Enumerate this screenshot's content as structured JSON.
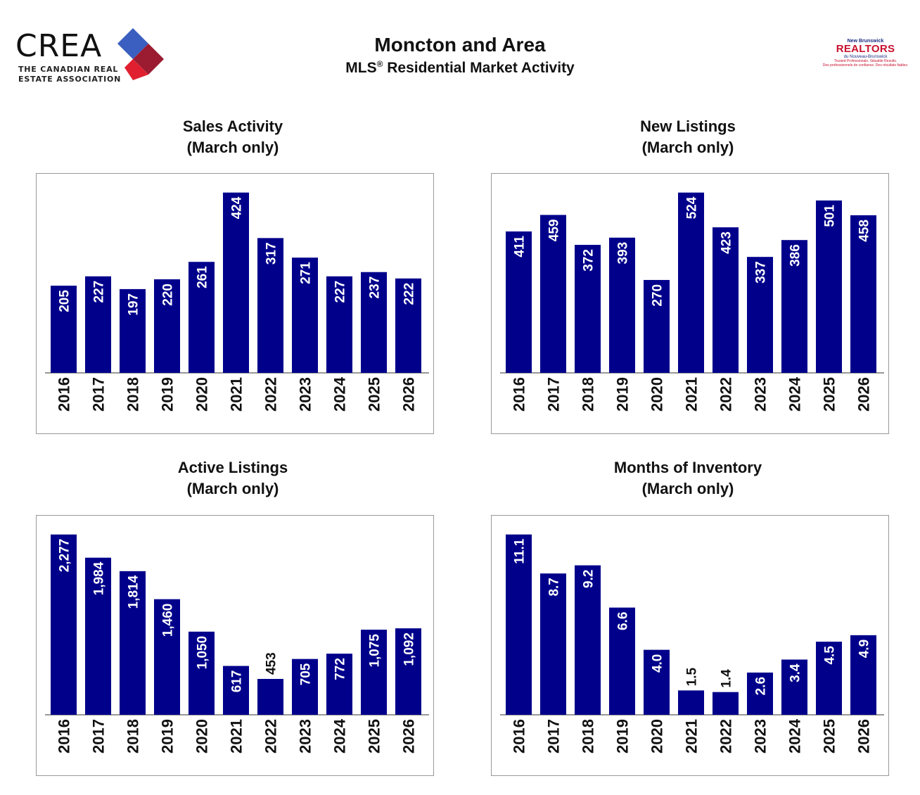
{
  "header": {
    "title": "Moncton and Area",
    "subtitle_pre": "MLS",
    "subtitle_mark": "®",
    "subtitle_post": " Residential Market Activity"
  },
  "logos": {
    "crea_word": "CREA",
    "crea_line1": "THE CANADIAN REAL",
    "crea_line2": "ESTATE ASSOCIATION",
    "nb_top": "New Brunswick",
    "nb_main": "REALTORS",
    "nb_sub": "du Nouveau-Brunswick",
    "nb_tag1": "Trusted Professionals. Valuable Results.",
    "nb_tag2": "Des professionnels de confiance. Des résultats fiables."
  },
  "colors": {
    "bar": "#00008B",
    "bar_label_inside": "#ffffff",
    "bar_label_outside": "#111111",
    "axis": "#333333"
  },
  "chart_data": [
    {
      "type": "bar",
      "title": "Sales Activity",
      "subtitle": "(March only)",
      "categories": [
        "2016",
        "2017",
        "2018",
        "2019",
        "2020",
        "2021",
        "2022",
        "2023",
        "2024",
        "2025",
        "2026"
      ],
      "values": [
        205,
        227,
        197,
        220,
        261,
        424,
        317,
        271,
        227,
        237,
        222
      ],
      "labels": [
        "205",
        "227",
        "197",
        "220",
        "261",
        "424",
        "317",
        "271",
        "227",
        "237",
        "222"
      ],
      "ylim": [
        0,
        445
      ]
    },
    {
      "type": "bar",
      "title": "New Listings",
      "subtitle": "(March only)",
      "categories": [
        "2016",
        "2017",
        "2018",
        "2019",
        "2020",
        "2021",
        "2022",
        "2023",
        "2024",
        "2025",
        "2026"
      ],
      "values": [
        411,
        459,
        372,
        393,
        270,
        524,
        423,
        337,
        386,
        501,
        458
      ],
      "labels": [
        "411",
        "459",
        "372",
        "393",
        "270",
        "524",
        "423",
        "337",
        "386",
        "501",
        "458"
      ],
      "ylim": [
        0,
        550
      ]
    },
    {
      "type": "bar",
      "title": "Active Listings",
      "subtitle": "(March only)",
      "categories": [
        "2016",
        "2017",
        "2018",
        "2019",
        "2020",
        "2021",
        "2022",
        "2023",
        "2024",
        "2025",
        "2026"
      ],
      "values": [
        2277,
        1984,
        1814,
        1460,
        1050,
        617,
        453,
        705,
        772,
        1075,
        1092
      ],
      "labels": [
        "2,277",
        "1,984",
        "1,814",
        "1,460",
        "1,050",
        "617",
        "453",
        "705",
        "772",
        "1,075",
        "1,092"
      ],
      "ylim": [
        0,
        2390
      ]
    },
    {
      "type": "bar",
      "title": "Months of Inventory",
      "subtitle": "(March only)",
      "categories": [
        "2016",
        "2017",
        "2018",
        "2019",
        "2020",
        "2021",
        "2022",
        "2023",
        "2024",
        "2025",
        "2026"
      ],
      "values": [
        11.1,
        8.7,
        9.2,
        6.6,
        4.0,
        1.5,
        1.4,
        2.6,
        3.4,
        4.5,
        4.9
      ],
      "labels": [
        "11.1",
        "8.7",
        "9.2",
        "6.6",
        "4.0",
        "1.5",
        "1.4",
        "2.6",
        "3.4",
        "4.5",
        "4.9"
      ],
      "ylim": [
        0,
        11.65
      ]
    }
  ]
}
